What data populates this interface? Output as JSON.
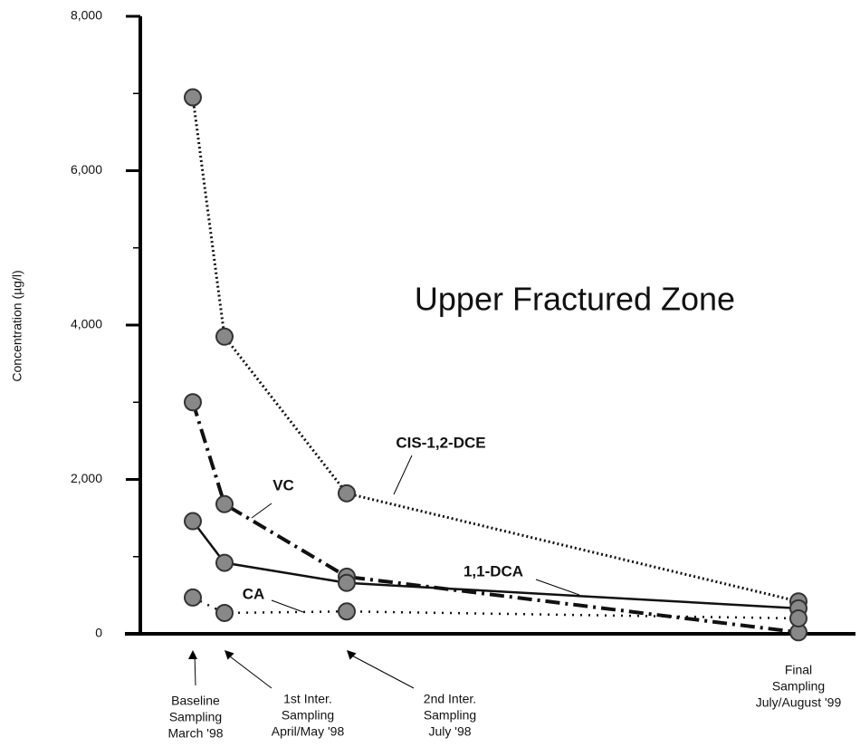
{
  "chart_data": {
    "type": "line",
    "annotation": "Upper Fractured Zone",
    "y_label": "Concentration (µg/l)",
    "categories": [
      [
        "Baseline",
        "Sampling",
        "March '98"
      ],
      [
        "1st Inter.",
        "Sampling",
        "April/May '98"
      ],
      [
        "2nd Inter.",
        "Sampling",
        "July '98"
      ],
      [
        "Final",
        "Sampling",
        "July/August '99"
      ]
    ],
    "series": [
      {
        "name": "CIS-1,2-DCE",
        "color": "#111111",
        "style": "dotted",
        "values": [
          6950,
          3850,
          1820,
          420
        ]
      },
      {
        "name": "VC",
        "color": "#111111",
        "style": "dashdot",
        "values": [
          3000,
          1680,
          740,
          20
        ]
      },
      {
        "name": "1,1-DCA",
        "color": "#111111",
        "style": "solid",
        "values": [
          1460,
          920,
          660,
          330
        ]
      },
      {
        "name": "CA",
        "color": "#111111",
        "style": "sparse-dotted",
        "values": [
          470,
          270,
          290,
          200
        ]
      }
    ],
    "marker_color": "#888888",
    "ylim": [
      0,
      8000
    ],
    "yticks": [
      0,
      {
        "value": 2000,
        "label": "2,000"
      },
      {
        "value": 4000,
        "label": "4,000"
      },
      {
        "value": 6000,
        "label": "6,000"
      },
      {
        "value": 8000,
        "label": "8,000"
      }
    ],
    "minor_yticks": [
      1000,
      3000,
      5000,
      7000
    ]
  }
}
